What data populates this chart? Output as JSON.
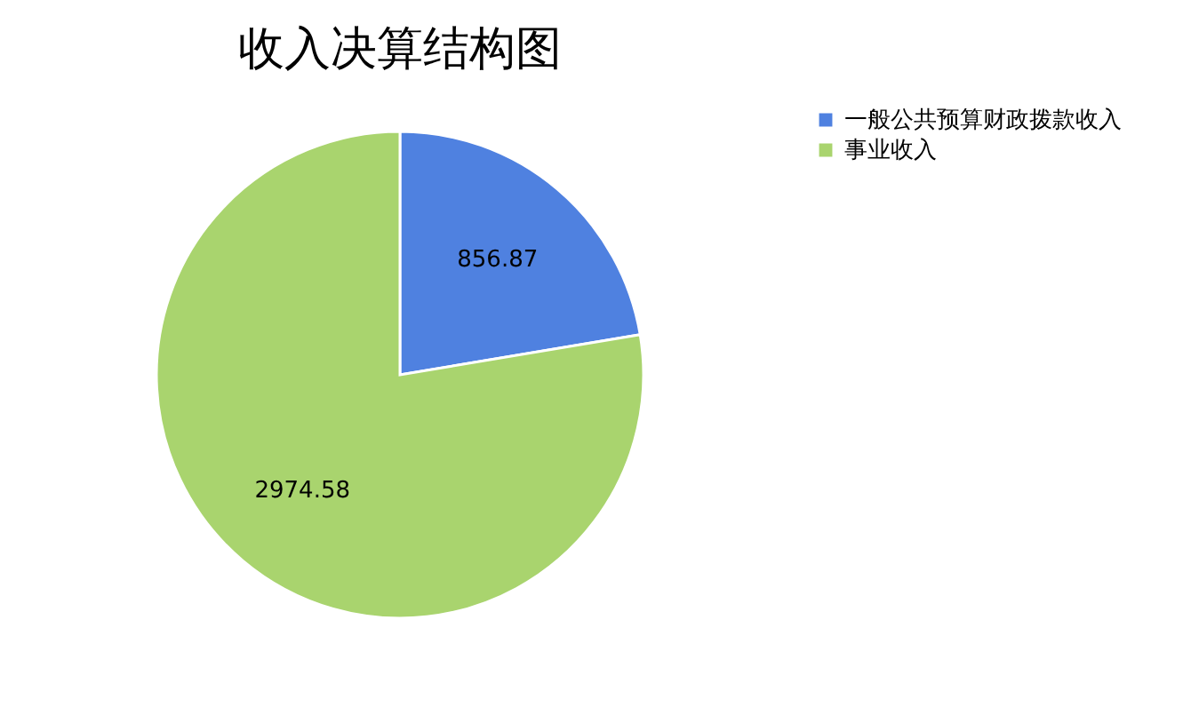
{
  "chart_data": {
    "type": "pie",
    "title": "收入决算结构图",
    "categories": [
      "一般公共预算财政拨款收入",
      "事业收入"
    ],
    "values": [
      856.87,
      2974.58
    ],
    "colors": [
      "#4f81e0",
      "#a9d46e"
    ],
    "data_labels": true,
    "legend": "right"
  }
}
